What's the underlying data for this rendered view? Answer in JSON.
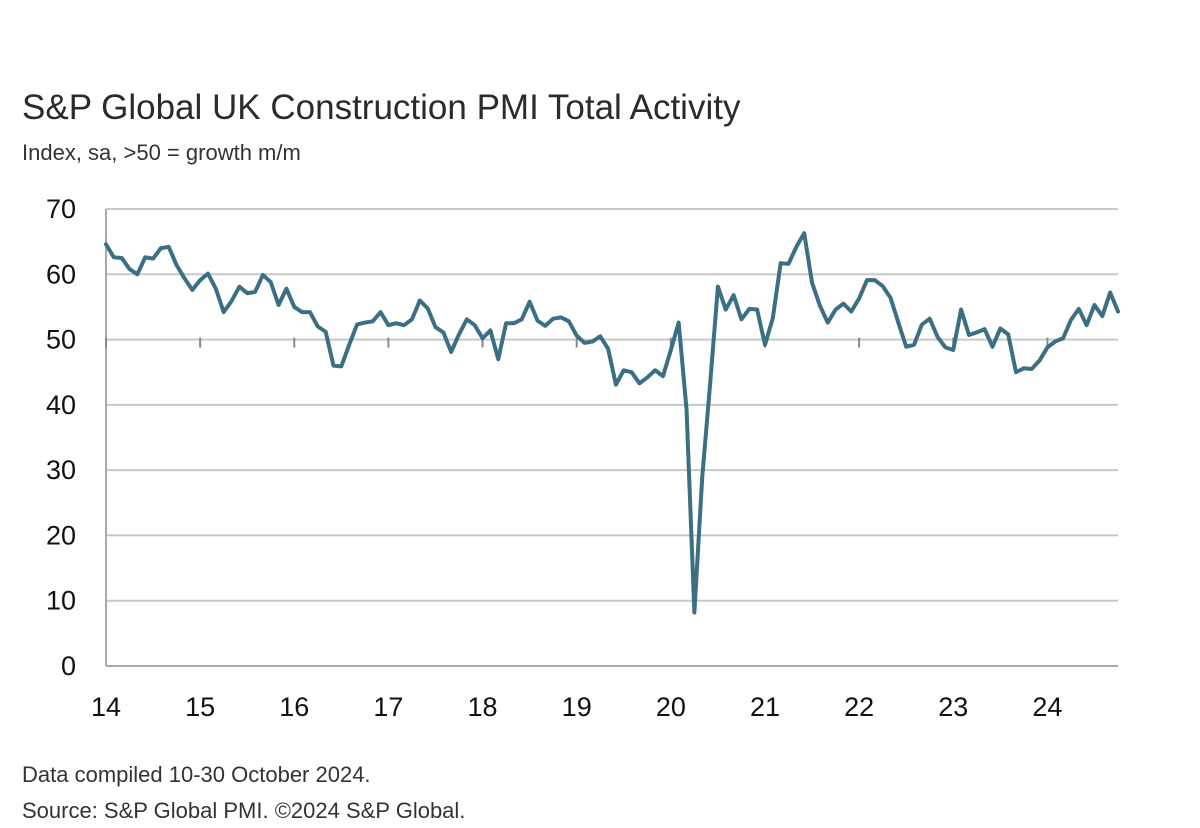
{
  "chart_data": {
    "type": "line",
    "title": "S&P Global UK Construction PMI Total Activity",
    "subtitle": "Index, sa, >50 = growth m/m",
    "xlabel": "",
    "ylabel": "",
    "ylim": [
      0,
      70
    ],
    "yticks": [
      "0",
      "10",
      "20",
      "30",
      "40",
      "50",
      "60",
      "70"
    ],
    "xticks": [
      "14",
      "15",
      "16",
      "17",
      "18",
      "19",
      "20",
      "21",
      "22",
      "23",
      "24"
    ],
    "grid": true,
    "line_color": "#3b6f84",
    "series": [
      {
        "name": "",
        "x": [
          "2014-01",
          "2014-02",
          "2014-03",
          "2014-04",
          "2014-05",
          "2014-06",
          "2014-07",
          "2014-08",
          "2014-09",
          "2014-10",
          "2014-11",
          "2014-12",
          "2015-01",
          "2015-02",
          "2015-03",
          "2015-04",
          "2015-05",
          "2015-06",
          "2015-07",
          "2015-08",
          "2015-09",
          "2015-10",
          "2015-11",
          "2015-12",
          "2016-01",
          "2016-02",
          "2016-03",
          "2016-04",
          "2016-05",
          "2016-06",
          "2016-07",
          "2016-08",
          "2016-09",
          "2016-10",
          "2016-11",
          "2016-12",
          "2017-01",
          "2017-02",
          "2017-03",
          "2017-04",
          "2017-05",
          "2017-06",
          "2017-07",
          "2017-08",
          "2017-09",
          "2017-10",
          "2017-11",
          "2017-12",
          "2018-01",
          "2018-02",
          "2018-03",
          "2018-04",
          "2018-05",
          "2018-06",
          "2018-07",
          "2018-08",
          "2018-09",
          "2018-10",
          "2018-11",
          "2018-12",
          "2019-01",
          "2019-02",
          "2019-03",
          "2019-04",
          "2019-05",
          "2019-06",
          "2019-07",
          "2019-08",
          "2019-09",
          "2019-10",
          "2019-11",
          "2019-12",
          "2020-01",
          "2020-02",
          "2020-03",
          "2020-04",
          "2020-05",
          "2020-06",
          "2020-07",
          "2020-08",
          "2020-09",
          "2020-10",
          "2020-11",
          "2020-12",
          "2021-01",
          "2021-02",
          "2021-03",
          "2021-04",
          "2021-05",
          "2021-06",
          "2021-07",
          "2021-08",
          "2021-09",
          "2021-10",
          "2021-11",
          "2021-12",
          "2022-01",
          "2022-02",
          "2022-03",
          "2022-04",
          "2022-05",
          "2022-06",
          "2022-07",
          "2022-08",
          "2022-09",
          "2022-10",
          "2022-11",
          "2022-12",
          "2023-01",
          "2023-02",
          "2023-03",
          "2023-04",
          "2023-05",
          "2023-06",
          "2023-07",
          "2023-08",
          "2023-09",
          "2023-10",
          "2023-11",
          "2023-12",
          "2024-01",
          "2024-02",
          "2024-03",
          "2024-04",
          "2024-05",
          "2024-06",
          "2024-07",
          "2024-08",
          "2024-09",
          "2024-10"
        ],
        "values": [
          64.6,
          62.6,
          62.5,
          60.8,
          60.0,
          62.6,
          62.4,
          64.0,
          64.2,
          61.4,
          59.4,
          57.6,
          59.1,
          60.1,
          57.8,
          54.2,
          55.9,
          58.1,
          57.1,
          57.3,
          59.9,
          58.8,
          55.3,
          57.8,
          55.0,
          54.2,
          54.2,
          52.0,
          51.2,
          46.0,
          45.9,
          49.2,
          52.3,
          52.6,
          52.8,
          54.2,
          52.2,
          52.5,
          52.2,
          53.1,
          56.0,
          54.8,
          51.9,
          51.1,
          48.1,
          50.8,
          53.1,
          52.2,
          50.2,
          51.4,
          47.0,
          52.5,
          52.5,
          53.1,
          55.8,
          52.9,
          52.1,
          53.2,
          53.4,
          52.8,
          50.6,
          49.5,
          49.7,
          50.5,
          48.6,
          43.1,
          45.3,
          45.0,
          43.3,
          44.2,
          45.3,
          44.4,
          48.4,
          52.6,
          39.3,
          8.2,
          28.9,
          43.1,
          58.1,
          54.6,
          56.8,
          53.1,
          54.7,
          54.6,
          49.2,
          53.3,
          61.7,
          61.6,
          64.2,
          66.3,
          58.7,
          55.2,
          52.6,
          54.6,
          55.5,
          54.3,
          56.3,
          59.1,
          59.1,
          58.2,
          56.4,
          52.6,
          48.9,
          49.2,
          52.3,
          53.2,
          50.4,
          48.8,
          48.4,
          54.6,
          50.7,
          51.1,
          51.6,
          48.9,
          51.7,
          50.8,
          45.0,
          45.6,
          45.5,
          46.8,
          48.8,
          49.7,
          50.2,
          53.0,
          54.7,
          52.2,
          55.3,
          53.6,
          57.2,
          54.3
        ]
      }
    ]
  },
  "footer": {
    "note": "Data compiled 10-30 October 2024.",
    "source": "Source: S&P Global PMI. ©2024 S&P Global."
  }
}
